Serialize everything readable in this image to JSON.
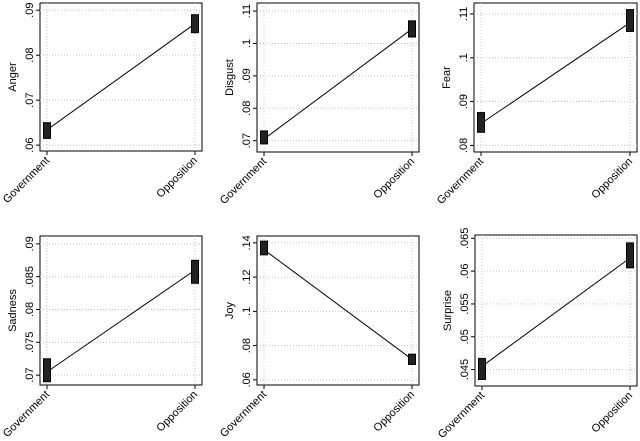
{
  "chart_data": [
    {
      "type": "line",
      "ylabel": "Anger",
      "categories": [
        "Government",
        "Opposition"
      ],
      "values": [
        0.0634,
        0.087
      ],
      "ci_low": [
        0.0615,
        0.085
      ],
      "ci_high": [
        0.065,
        0.089
      ],
      "yticks": [
        ".06",
        ".07",
        ".08",
        ".09"
      ],
      "ytick_values": [
        0.06,
        0.07,
        0.08,
        0.09
      ],
      "ylim": [
        0.0587,
        0.0916
      ],
      "grid": true
    },
    {
      "type": "line",
      "ylabel": "Disgust",
      "categories": [
        "Government",
        "Opposition"
      ],
      "values": [
        0.0705,
        0.1045
      ],
      "ci_low": [
        0.069,
        0.102
      ],
      "ci_high": [
        0.073,
        0.107
      ],
      "yticks": [
        ".07",
        ".08",
        ".09",
        ".1",
        ".11"
      ],
      "ytick_values": [
        0.07,
        0.08,
        0.09,
        0.1,
        0.11
      ],
      "ylim": [
        0.0665,
        0.1125
      ],
      "grid": true
    },
    {
      "type": "line",
      "ylabel": "Fear",
      "categories": [
        "Government",
        "Opposition"
      ],
      "values": [
        0.085,
        0.108
      ],
      "ci_low": [
        0.083,
        0.106
      ],
      "ci_high": [
        0.0875,
        0.111
      ],
      "yticks": [
        ".08",
        ".09",
        ".1",
        ".11"
      ],
      "ytick_values": [
        0.08,
        0.09,
        0.1,
        0.11
      ],
      "ylim": [
        0.0785,
        0.1125
      ],
      "grid": true
    },
    {
      "type": "line",
      "ylabel": "Sadness",
      "categories": [
        "Government",
        "Opposition"
      ],
      "values": [
        0.0705,
        0.086
      ],
      "ci_low": [
        0.069,
        0.084
      ],
      "ci_high": [
        0.0725,
        0.0875
      ],
      "yticks": [
        ".07",
        ".075",
        ".08",
        ".085",
        ".09"
      ],
      "ytick_values": [
        0.07,
        0.075,
        0.08,
        0.085,
        0.09
      ],
      "ylim": [
        0.0685,
        0.0912
      ],
      "grid": true
    },
    {
      "type": "line",
      "ylabel": "Joy",
      "categories": [
        "Government",
        "Opposition"
      ],
      "values": [
        0.136,
        0.072
      ],
      "ci_low": [
        0.133,
        0.069
      ],
      "ci_high": [
        0.141,
        0.075
      ],
      "yticks": [
        ".06",
        ".08",
        ".1",
        ".12",
        ".14"
      ],
      "ytick_values": [
        0.06,
        0.08,
        0.1,
        0.12,
        0.14
      ],
      "ylim": [
        0.057,
        0.144
      ],
      "grid": true
    },
    {
      "type": "line",
      "ylabel": "Surprise",
      "categories": [
        "Government",
        "Opposition"
      ],
      "values": [
        0.0455,
        0.062
      ],
      "ci_low": [
        0.0435,
        0.0605
      ],
      "ci_high": [
        0.0467,
        0.0643
      ],
      "yticks": [
        ".045",
        ".05",
        ".055",
        ".06",
        ".065"
      ],
      "ytick_values": [
        0.045,
        0.05,
        0.055,
        0.06,
        0.065
      ],
      "ylim": [
        0.0425,
        0.0655
      ],
      "grid": true
    }
  ]
}
